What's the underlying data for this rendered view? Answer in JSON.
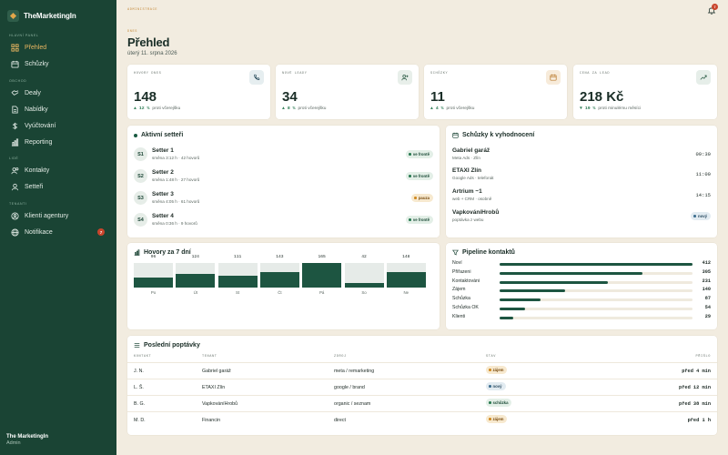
{
  "brand": {
    "name": "TheMarketingIn"
  },
  "sidebar": {
    "sections": {
      "main": "HLAVNÍ PANEL",
      "business": "OBCHOD",
      "people": "LIDÉ",
      "tenants": "TENANTI"
    },
    "items": [
      {
        "label": "Přehled",
        "icon": "grid-icon",
        "active": true
      },
      {
        "label": "Schůzky",
        "icon": "calendar-icon"
      },
      {
        "label": "Dealy",
        "icon": "handshake-icon"
      },
      {
        "label": "Nabídky",
        "icon": "document-icon"
      },
      {
        "label": "Vyúčtování",
        "icon": "dollar-icon"
      },
      {
        "label": "Reporting",
        "icon": "chart-icon"
      },
      {
        "label": "Kontakty",
        "icon": "users-icon"
      },
      {
        "label": "Setteři",
        "icon": "user-icon"
      },
      {
        "label": "Klienti agentury",
        "icon": "person-icon"
      },
      {
        "label": "Notifikace",
        "icon": "globe-icon",
        "badge": "7"
      }
    ],
    "footer": {
      "name": "The MarketingIn",
      "role": "Admin"
    }
  },
  "header": {
    "crumb": "ADMINISTRACE",
    "notification_count": "7",
    "kicker": "DNES",
    "title": "Přehled",
    "date": "úterý 11. srpna 2026"
  },
  "stats": [
    {
      "label": "HOVORY DNES",
      "value": "148",
      "delta_sign": "▲",
      "delta": "12 %",
      "compare": "proti včerejšku",
      "icon": "phone-icon"
    },
    {
      "label": "NOVÉ LEADY",
      "value": "34",
      "delta_sign": "▲",
      "delta": "8 %",
      "compare": "proti včerejšku",
      "icon": "user-plus-icon"
    },
    {
      "label": "SCHŮZKY",
      "value": "11",
      "delta_sign": "▲",
      "delta": "4 %",
      "compare": "proti včerejšku",
      "icon": "calendar-icon"
    },
    {
      "label": "CENA ZA LEAD",
      "value": "218 Kč",
      "delta_sign": "▼",
      "delta": "19 %",
      "compare": "proti minulému měsíci",
      "icon": "trend-icon"
    }
  ],
  "setters": {
    "title": "Aktivní setteři",
    "items": [
      {
        "initials": "S1",
        "name": "Setter 1",
        "meta": "směna 3:12 h · 42 hovorů",
        "status": "ve frontě",
        "tone": "green"
      },
      {
        "initials": "S2",
        "name": "Setter 2",
        "meta": "směna 1:48 h · 27 hovorů",
        "status": "ve frontě",
        "tone": "green"
      },
      {
        "initials": "S3",
        "name": "Setter 3",
        "meta": "směna 4:05 h · 61 hovorů",
        "status": "pauza",
        "tone": "amber"
      },
      {
        "initials": "S4",
        "name": "Setter 4",
        "meta": "směna 0:36 h · 9 hovorů",
        "status": "ve frontě",
        "tone": "green"
      }
    ]
  },
  "meetings": {
    "title": "Schůzky k vyhodnocení",
    "items": [
      {
        "name": "Gabriel garáž",
        "meta": "Meta Ads · Zlín",
        "time": "09:30"
      },
      {
        "name": "ETAXI Zlín",
        "meta": "Google Ads · telefonát",
        "time": "11:00"
      },
      {
        "name": "Artrium ~1",
        "meta": "web + CRM · osobně",
        "time": "14:15"
      },
      {
        "name": "VapkováníHrobů",
        "meta": "poptávka z webu",
        "status": "nový",
        "tone": "blue"
      }
    ]
  },
  "calls_chart": {
    "title": "Hovory za 7 dní",
    "chart_data": {
      "type": "bar",
      "categories": [
        "Po",
        "Út",
        "St",
        "Čt",
        "Pá",
        "So",
        "Ne"
      ],
      "values": [
        96,
        124,
        111,
        143,
        165,
        42,
        148
      ],
      "ylim": [
        0,
        165
      ]
    }
  },
  "pipeline": {
    "title": "Pipeline kontaktů",
    "chart_data": {
      "type": "bar",
      "categories": [
        "Noví",
        "Přiřazeni",
        "Kontaktováni",
        "Zájem",
        "Schůzka",
        "Schůzka OK",
        "Klienti"
      ],
      "values": [
        412,
        305,
        231,
        140,
        87,
        54,
        29
      ],
      "xlim": [
        0,
        412
      ]
    }
  },
  "requests": {
    "title": "Poslední poptávky",
    "columns": [
      "KONTAKT",
      "TENANT",
      "ZDROJ",
      "STAV",
      "PŘIŠLO"
    ],
    "rows": [
      {
        "contact": "J. N.",
        "tenant": "Gabriel garáž",
        "source": "meta / remarketing",
        "status": "zájem",
        "tone": "amber",
        "when": "před 4 min"
      },
      {
        "contact": "L. Š.",
        "tenant": "ETAXI Zlín",
        "source": "google / brand",
        "status": "nový",
        "tone": "blue",
        "when": "před 12 min"
      },
      {
        "contact": "B. G.",
        "tenant": "VapkováníHrobů",
        "source": "organic / seznam",
        "status": "schůzka",
        "tone": "green",
        "when": "před 38 min"
      },
      {
        "contact": "M. D.",
        "tenant": "Financin",
        "source": "direct",
        "status": "zájem",
        "tone": "amber",
        "when": "před 1 h"
      }
    ]
  },
  "colors": {
    "sidebar": "#1a4434",
    "accent": "#e9b661",
    "bar": "#1d5541",
    "background": "#f2ece0"
  }
}
